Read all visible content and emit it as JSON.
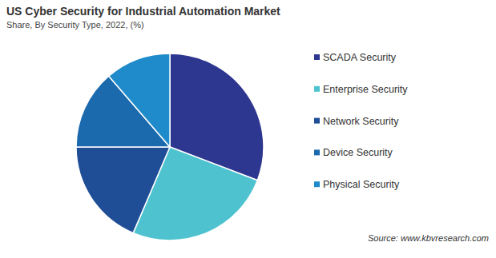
{
  "chart_data": {
    "type": "pie",
    "title": "US Cyber Security for Industrial Automation Market",
    "subtitle": "Share, By Security Type,  2022, (%)",
    "categories": [
      "SCADA Security",
      "Enterprise Security",
      "Network Security",
      "Device Security",
      "Physical Security"
    ],
    "values": [
      30.8,
      25.6,
      18.6,
      13.7,
      11.3
    ],
    "colors": [
      "#2e3790",
      "#4ec3cf",
      "#1f4e97",
      "#1b6aad",
      "#1f8bcb"
    ],
    "legend": "right",
    "source": "Source: www.kbvresearch.com"
  }
}
